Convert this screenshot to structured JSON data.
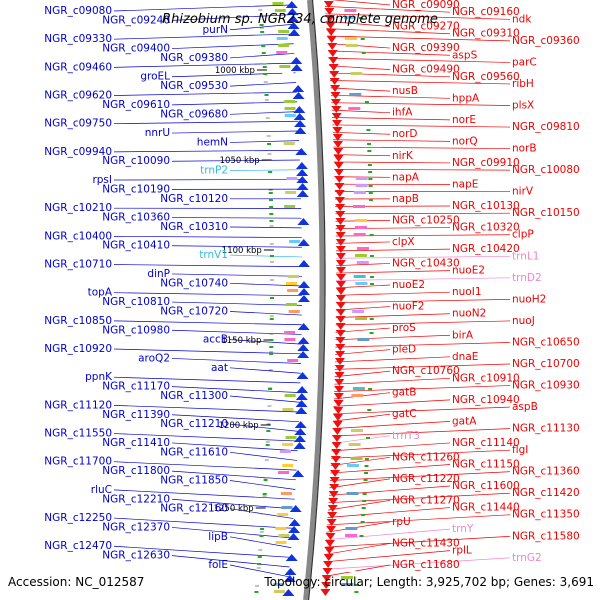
{
  "title": "Rhizobium sp. NGR234, complete genome",
  "footer": {
    "accession": "Accession: NC_012587",
    "topology": "Topology: circular; Length: 3,925,702 bp; Genes: 3,691"
  },
  "colors": {
    "left_label": "#0000cc",
    "right_label": "#ee0000",
    "trna_left": "#33bbdd",
    "trna_right": "#ee88cc",
    "backbone": "#888888",
    "backbone_dark": "#333333"
  },
  "kbp_labels": [
    "1000 kbp",
    "1050 kbp",
    "1100 kbp",
    "1150 kbp",
    "1200 kbp",
    "1250 kbp"
  ],
  "left_labels": [
    "NGR_c09080",
    "NGR_c09240",
    "purN",
    "NGR_c09330",
    "NGR_c09400",
    "NGR_c09380",
    "NGR_c09460",
    "groEL",
    "NGR_c09530",
    "NGR_c09620",
    "NGR_c09610",
    "NGR_c09680",
    "NGR_c09750",
    "nnrU",
    "hemN",
    "NGR_c09940",
    "NGR_c10090",
    "trnP2",
    "rpsI",
    "NGR_c10190",
    "NGR_c10120",
    "NGR_c10210",
    "NGR_c10360",
    "NGR_c10310",
    "NGR_c10400",
    "NGR_c10410",
    "trnV1",
    "NGR_c10710",
    "dinP",
    "NGR_c10740",
    "topA",
    "NGR_c10810",
    "NGR_c10720",
    "NGR_c10850",
    "NGR_c10980",
    "accB",
    "NGR_c10920",
    "aroQ2",
    "aat",
    "ppnK",
    "NGR_c11170",
    "NGR_c11300",
    "NGR_c11120",
    "NGR_c11390",
    "NGR_c11210",
    "NGR_c11550",
    "NGR_c11410",
    "NGR_c11610",
    "NGR_c11700",
    "NGR_c11800",
    "NGR_c11850",
    "rluC",
    "NGR_c12210",
    "NGR_c12160",
    "NGR_c12250",
    "NGR_c12370",
    "lipB",
    "NGR_c12470",
    "NGR_c12630",
    "folE"
  ],
  "right_labels": [
    "NGR_c09090",
    "NGR_c09160",
    "ndk",
    "NGR_c09270",
    "NGR_c09310",
    "NGR_c09360",
    "NGR_c09390",
    "aspS",
    "parC",
    "NGR_c09490",
    "NGR_c09560",
    "ribH",
    "nusB",
    "hppA",
    "plsX",
    "ihfA",
    "norE",
    "NGR_c09810",
    "norD",
    "norQ",
    "norB",
    "nirK",
    "NGR_c09910",
    "NGR_c10080",
    "napA",
    "napE",
    "nirV",
    "napB",
    "NGR_c10130",
    "NGR_c10150",
    "NGR_c10250",
    "NGR_c10320",
    "clpP",
    "clpX",
    "NGR_c10420",
    "trnL1",
    "NGR_c10430",
    "nuoE2",
    "trnD2",
    "nuoE2",
    "nuoI1",
    "nuoH2",
    "nuoF2",
    "nuoN2",
    "nuoJ",
    "proS",
    "birA",
    "NGR_c10650",
    "pleD",
    "dnaE",
    "NGR_c10700",
    "NGR_c10760",
    "NGR_c10910",
    "NGR_c10930",
    "gatB",
    "NGR_c10940",
    "aspB",
    "gatC",
    "gatA",
    "NGR_c11130",
    "trnT3",
    "NGR_c11140",
    "flgI",
    "NGR_c11260",
    "NGR_c11150",
    "NGR_c11360",
    "NGR_c11220",
    "NGR_c11600",
    "NGR_c11420",
    "NGR_c11270",
    "NGR_c11440",
    "NGR_c11350",
    "rpU",
    "trnY",
    "NGR_c11580",
    "NGR_c11430",
    "rplL",
    "trnG2",
    "NGR_c11680"
  ]
}
